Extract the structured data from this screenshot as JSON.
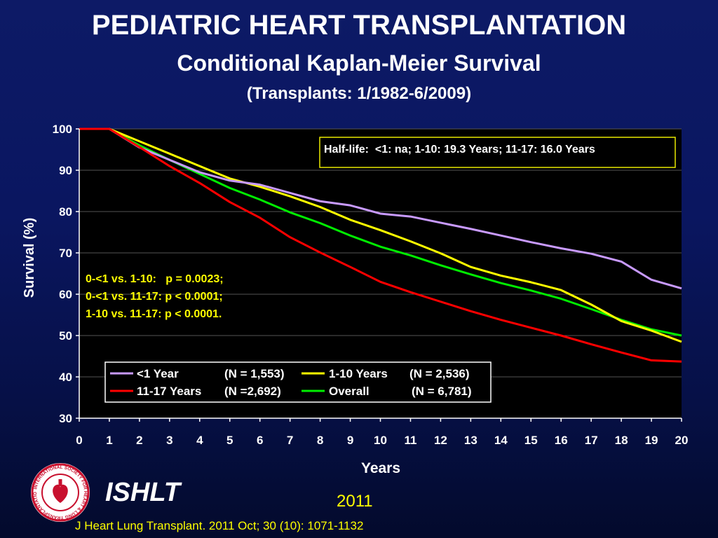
{
  "header": {
    "title": "PEDIATRIC HEART TRANSPLANTATION",
    "subtitle": "Conditional Kaplan-Meier Survival",
    "subtitle2": "(Transplants: 1/1982-6/2009)"
  },
  "footer": {
    "brand": "ISHLT",
    "year": "2011",
    "citation": "J Heart Lung Transplant. 2011 Oct; 30 (10): 1071-1132",
    "logo_text": "INTERNATIONAL SOCIETY FOR HEART & LUNG TRANSPLANTATION"
  },
  "chart_data": {
    "type": "line",
    "xlabel": "Years",
    "ylabel": "Survival (%)",
    "xlim": [
      0,
      20
    ],
    "ylim": [
      30,
      100
    ],
    "xticks": [
      "0",
      "1",
      "2",
      "3",
      "4",
      "5",
      "6",
      "7",
      "8",
      "9",
      "10",
      "11",
      "12",
      "13",
      "14",
      "15",
      "16",
      "17",
      "18",
      "19",
      "20"
    ],
    "yticks": [
      "30",
      "40",
      "50",
      "60",
      "70",
      "80",
      "90",
      "100"
    ],
    "grid": "horizontal",
    "halflife_note": "Half-life:  <1: na; 1-10: 19.3 Years; 11-17: 16.0 Years",
    "pvalues": [
      "0-<1 vs. 1-10:   p = 0.0023;",
      "0-<1 vs. 11-17: p < 0.0001;",
      "1-10 vs. 11-17: p < 0.0001."
    ],
    "legend_position": "bottom-left",
    "x": [
      0,
      1,
      2,
      3,
      4,
      5,
      6,
      7,
      8,
      9,
      10,
      11,
      12,
      13,
      14,
      15,
      16,
      17,
      18,
      19,
      20
    ],
    "series": [
      {
        "name": "<1 Year",
        "n_label": "(N = 1,553)",
        "color": "#c89aff",
        "values": [
          100,
          100,
          95.5,
          92.5,
          89.5,
          87.5,
          86.5,
          84.5,
          82.5,
          81.5,
          79.5,
          78.8,
          77.3,
          75.8,
          74.2,
          72.6,
          71.1,
          69.8,
          67.9,
          63.5,
          61.4
        ]
      },
      {
        "name": "1-10 Years",
        "n_label": "(N = 2,536)",
        "color": "#ffff00",
        "values": [
          100,
          100,
          97,
          94,
          91,
          88,
          86,
          83.7,
          81.1,
          78,
          75.5,
          72.8,
          69.9,
          66.6,
          64.5,
          62.9,
          61,
          57.5,
          53.5,
          51.2,
          48.5
        ]
      },
      {
        "name": "11-17 Years",
        "n_label": "(N =2,692)",
        "color": "#ff0000",
        "values": [
          100,
          100,
          95.6,
          91,
          86.9,
          82.3,
          78.5,
          73.8,
          70.1,
          66.6,
          63,
          60.5,
          58.2,
          55.9,
          53.8,
          51.9,
          50,
          47.9,
          45.9,
          44,
          43.7
        ]
      },
      {
        "name": "Overall",
        "n_label": "(N = 6,781)",
        "color": "#00ee00",
        "values": [
          100,
          100,
          96,
          92.5,
          89.1,
          85.7,
          82.9,
          79.8,
          77.2,
          74.2,
          71.5,
          69.4,
          67,
          64.8,
          62.7,
          60.9,
          58.9,
          56.4,
          53.8,
          51.5,
          50
        ]
      }
    ]
  }
}
